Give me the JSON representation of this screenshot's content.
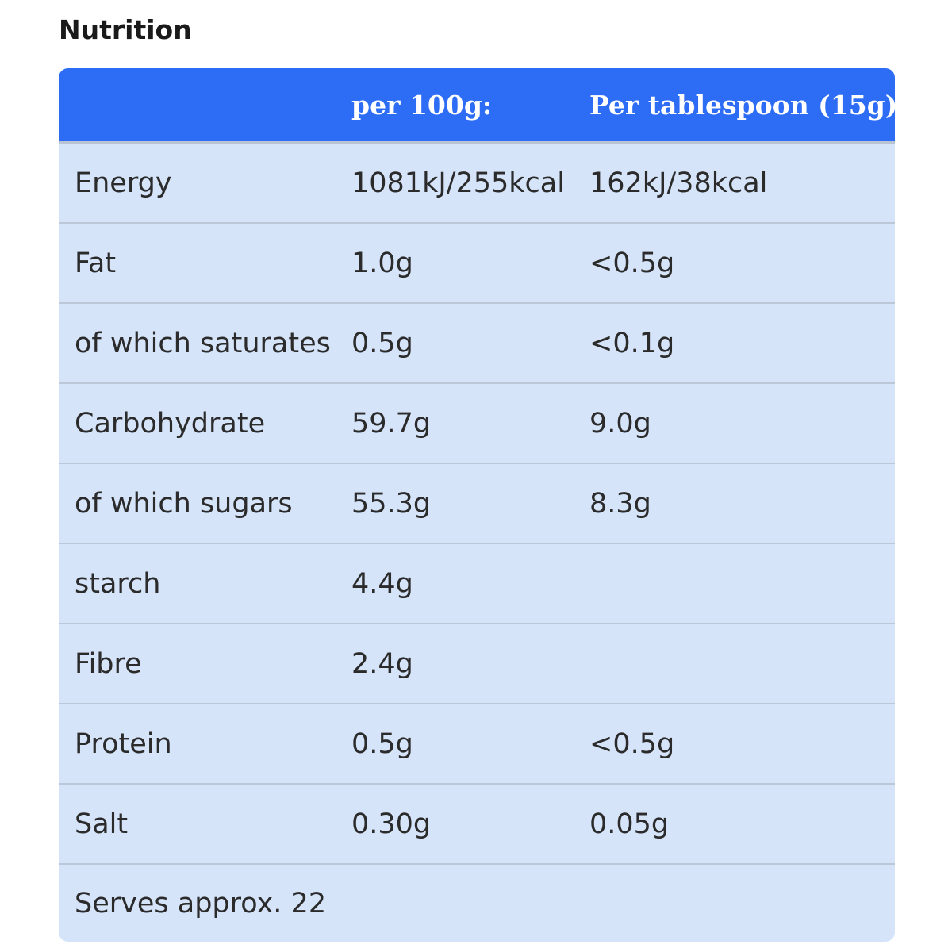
{
  "title": "Nutrition",
  "table": {
    "headers": [
      "",
      "per 100g:",
      "Per tablespoon (15g)"
    ],
    "rows": [
      {
        "nutrient": "Energy",
        "per_100g": "1081kJ/255kcal",
        "per_tablespoon": "162kJ/38kcal"
      },
      {
        "nutrient": "Fat",
        "per_100g": "1.0g",
        "per_tablespoon": "<0.5g"
      },
      {
        "nutrient": "of which saturates",
        "per_100g": "0.5g",
        "per_tablespoon": "<0.1g"
      },
      {
        "nutrient": "Carbohydrate",
        "per_100g": "59.7g",
        "per_tablespoon": "9.0g"
      },
      {
        "nutrient": "of which sugars",
        "per_100g": "55.3g",
        "per_tablespoon": "8.3g"
      },
      {
        "nutrient": "starch",
        "per_100g": "4.4g",
        "per_tablespoon": ""
      },
      {
        "nutrient": "Fibre",
        "per_100g": "2.4g",
        "per_tablespoon": ""
      },
      {
        "nutrient": "Protein",
        "per_100g": "0.5g",
        "per_tablespoon": "<0.5g"
      },
      {
        "nutrient": "Salt",
        "per_100g": "0.30g",
        "per_tablespoon": "0.05g"
      },
      {
        "nutrient": "Serves approx. 22",
        "per_100g": "",
        "per_tablespoon": ""
      }
    ]
  },
  "colors": {
    "header_background": "#2d6cf5",
    "row_background": "#d6e4fa",
    "header_text": "#ffffff",
    "body_text": "#2b2b2b"
  }
}
